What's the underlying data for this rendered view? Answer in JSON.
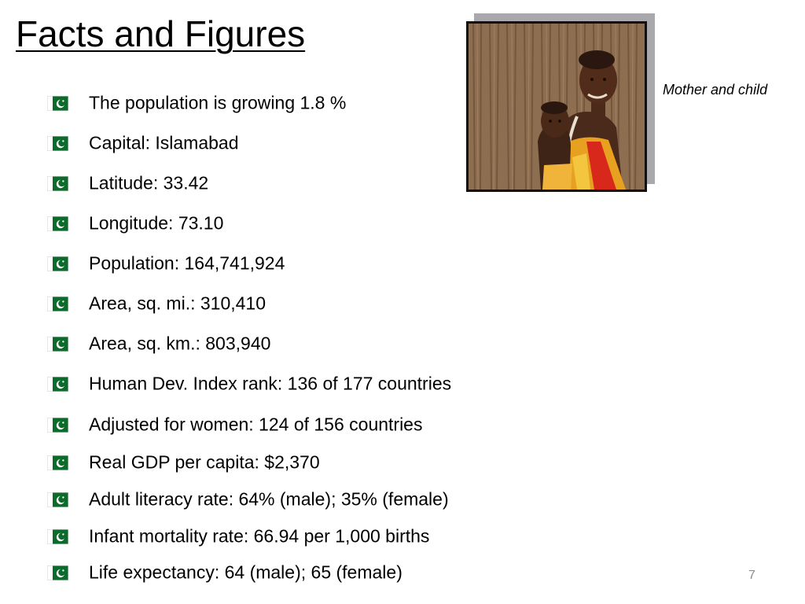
{
  "slide": {
    "title": "Facts and Figures",
    "slide_number": "7"
  },
  "photo": {
    "caption": "Mother and child"
  },
  "bullet_icon": "pakistan-flag-icon",
  "colors": {
    "flag_green": "#0b6b2b",
    "flag_white": "#ffffff",
    "caption_text": "#000000",
    "slide_number_text": "#8c8c8c",
    "photo_shadow": "#a9a9ad"
  },
  "bullets": [
    "The population is growing 1.8 %",
    "Capital: Islamabad",
    "Latitude: 33.42",
    "Longitude: 73.10",
    "Population: 164,741,924",
    "Area, sq. mi.: 310,410",
    "Area, sq. km.: 803,940",
    "Human Dev. Index rank: 136 of 177 countries",
    "Adjusted for women: 124 of 156 countries",
    "Real GDP per capita: $2,370",
    "Adult literacy rate: 64% (male); 35% (female)",
    "Infant mortality rate: 66.94 per 1,000 births",
    "Life expectancy: 64 (male); 65 (female)"
  ]
}
